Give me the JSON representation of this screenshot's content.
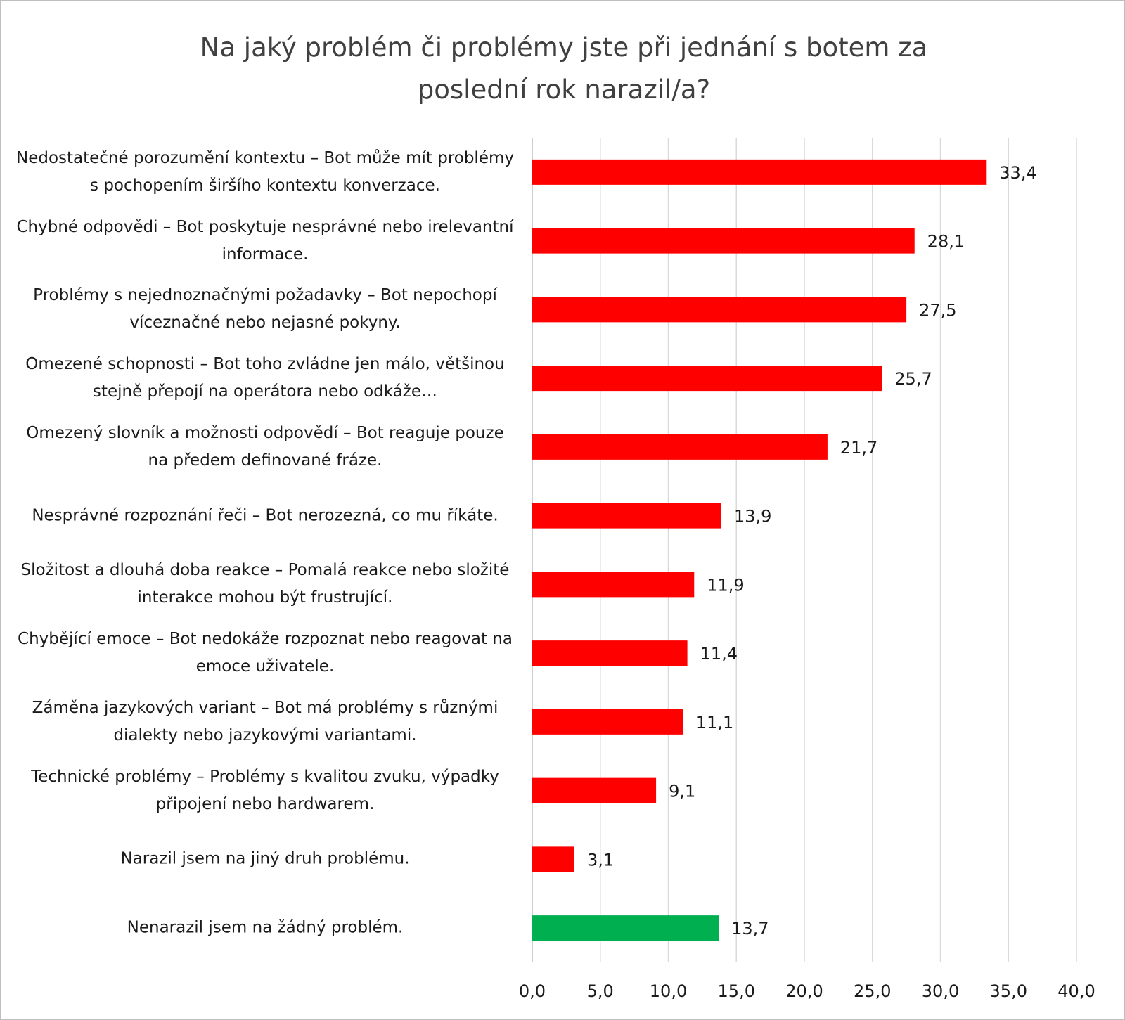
{
  "chart_data": {
    "type": "hbar",
    "title": "Na jaký problém či problémy jste při jednání s botem za poslední rok narazil/a?",
    "categories": [
      "Nedostatečné porozumění kontextu – Bot může mít problémy s pochopením širšího kontextu konverzace.",
      "Chybné odpovědi – Bot poskytuje nesprávné nebo irelevantní informace.",
      "Problémy s nejednoznačnými požadavky – Bot nepochopí víceznačné nebo nejasné pokyny.",
      "Omezené schopnosti – Bot toho zvládne jen málo, většinou stejně přepojí na operátora nebo odkáže…",
      "Omezený slovník a možnosti odpovědí – Bot reaguje pouze na předem definované fráze.",
      "Nesprávné rozpoznání řeči – Bot nerozezná, co mu říkáte.",
      "Složitost a dlouhá doba reakce – Pomalá reakce nebo složité interakce mohou být frustrující.",
      "Chybějící emoce – Bot nedokáže rozpoznat nebo reagovat na emoce uživatele.",
      "Záměna jazykových variant – Bot má problémy s různými dialekty nebo jazykovými variantami.",
      "Technické problémy – Problémy s kvalitou zvuku, výpadky připojení nebo hardwarem.",
      "Narazil jsem na jiný druh problému.",
      "Nenarazil jsem na žádný problém."
    ],
    "values": [
      33.4,
      28.1,
      27.5,
      25.7,
      21.7,
      13.9,
      11.9,
      11.4,
      11.1,
      9.1,
      3.1,
      13.7
    ],
    "value_labels": [
      "33,4",
      "28,1",
      "27,5",
      "25,7",
      "21,7",
      "13,9",
      "11,9",
      "11,4",
      "11,1",
      "9,1",
      "3,1",
      "13,7"
    ],
    "colors": [
      "#ff0000",
      "#ff0000",
      "#ff0000",
      "#ff0000",
      "#ff0000",
      "#ff0000",
      "#ff0000",
      "#ff0000",
      "#ff0000",
      "#ff0000",
      "#ff0000",
      "#00b050"
    ],
    "xlim": [
      0,
      40
    ],
    "xticks": [
      {
        "value": 0,
        "label": "0,0"
      },
      {
        "value": 5,
        "label": "5,0"
      },
      {
        "value": 10,
        "label": "10,0"
      },
      {
        "value": 15,
        "label": "15,0"
      },
      {
        "value": 20,
        "label": "20,0"
      },
      {
        "value": 25,
        "label": "25,0"
      },
      {
        "value": 30,
        "label": "30,0"
      },
      {
        "value": 35,
        "label": "35,0"
      },
      {
        "value": 40,
        "label": "40,0"
      }
    ],
    "grid": true
  }
}
